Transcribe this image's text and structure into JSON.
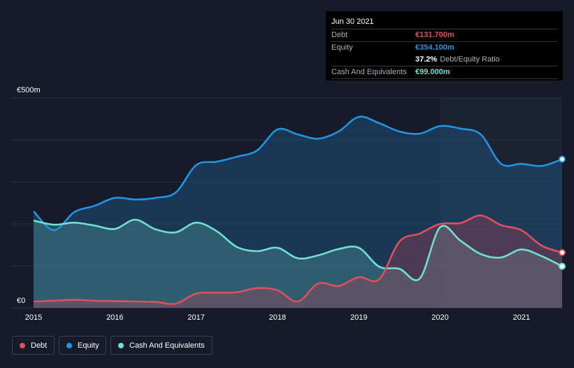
{
  "tooltip": {
    "date": "Jun 30 2021",
    "debt_label": "Debt",
    "debt_value": "€131.700m",
    "equity_label": "Equity",
    "equity_value": "€354.100m",
    "ratio_value": "37.2%",
    "ratio_label": "Debt/Equity Ratio",
    "cash_label": "Cash And Equivalents",
    "cash_value": "€99.000m"
  },
  "legend": {
    "debt": "Debt",
    "equity": "Equity",
    "cash": "Cash And Equivalents"
  },
  "colors": {
    "debt": "#e0505c",
    "equity": "#2394df",
    "cash": "#6fe0d2",
    "background": "#151b28"
  },
  "chart_data": {
    "type": "area",
    "title": "",
    "xlabel": "",
    "ylabel": "",
    "ylim": [
      0,
      500
    ],
    "xlim": [
      2015,
      2021.5
    ],
    "y_tick_labels": [
      {
        "value": 500,
        "label": "€500m"
      },
      {
        "value": 0,
        "label": "€0"
      }
    ],
    "x_ticks": [
      {
        "value": 2015,
        "label": "2015"
      },
      {
        "value": 2016,
        "label": "2016"
      },
      {
        "value": 2017,
        "label": "2017"
      },
      {
        "value": 2018,
        "label": "2018"
      },
      {
        "value": 2019,
        "label": "2019"
      },
      {
        "value": 2020,
        "label": "2020"
      },
      {
        "value": 2021,
        "label": "2021"
      }
    ],
    "series": [
      {
        "name": "Equity",
        "x": [
          2015,
          2015.25,
          2015.5,
          2015.75,
          2016,
          2016.25,
          2016.5,
          2016.75,
          2017,
          2017.25,
          2017.5,
          2017.75,
          2018,
          2018.25,
          2018.5,
          2018.75,
          2019,
          2019.25,
          2019.5,
          2019.75,
          2020,
          2020.25,
          2020.5,
          2020.75,
          2021,
          2021.25,
          2021.5
        ],
        "values": [
          230,
          185,
          228,
          243,
          262,
          258,
          262,
          275,
          340,
          348,
          360,
          375,
          425,
          413,
          403,
          420,
          455,
          440,
          420,
          415,
          433,
          427,
          413,
          343,
          343,
          338,
          354.1
        ]
      },
      {
        "name": "Cash And Equivalents",
        "x": [
          2015,
          2015.25,
          2015.5,
          2015.75,
          2016,
          2016.25,
          2016.5,
          2016.75,
          2017,
          2017.25,
          2017.5,
          2017.75,
          2018,
          2018.25,
          2018.5,
          2018.75,
          2019,
          2019.25,
          2019.5,
          2019.75,
          2020,
          2020.25,
          2020.5,
          2020.75,
          2021,
          2021.25,
          2021.5
        ],
        "values": [
          208,
          198,
          203,
          196,
          188,
          210,
          187,
          180,
          203,
          183,
          145,
          135,
          143,
          118,
          125,
          140,
          143,
          98,
          93,
          70,
          192,
          160,
          128,
          120,
          139,
          123,
          99
        ]
      },
      {
        "name": "Debt",
        "x": [
          2015,
          2015.25,
          2015.5,
          2015.75,
          2016,
          2016.25,
          2016.5,
          2016.75,
          2017,
          2017.25,
          2017.5,
          2017.75,
          2018,
          2018.25,
          2018.5,
          2018.75,
          2019,
          2019.25,
          2019.5,
          2019.75,
          2020,
          2020.25,
          2020.5,
          2020.75,
          2021,
          2021.25,
          2021.5
        ],
        "values": [
          15,
          17,
          19,
          17,
          16,
          15,
          14,
          10,
          34,
          36,
          37,
          47,
          42,
          15,
          58,
          52,
          73,
          68,
          158,
          177,
          200,
          202,
          220,
          197,
          185,
          148,
          131.7
        ]
      }
    ]
  }
}
